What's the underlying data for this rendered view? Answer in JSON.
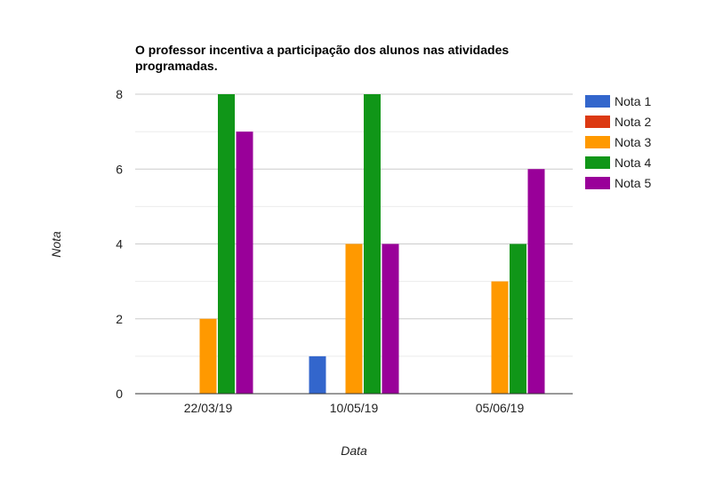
{
  "chart_data": {
    "type": "bar",
    "title": "O professor incentiva a participação dos alunos nas atividades programadas.",
    "xlabel": "Data",
    "ylabel": "Nota",
    "categories": [
      "22/03/19",
      "10/05/19",
      "05/06/19"
    ],
    "series": [
      {
        "name": "Nota 1",
        "color": "#3366cc",
        "values": [
          0,
          1,
          0
        ]
      },
      {
        "name": "Nota 2",
        "color": "#dc3912",
        "values": [
          0,
          0,
          0
        ]
      },
      {
        "name": "Nota 3",
        "color": "#ff9900",
        "values": [
          2,
          4,
          3
        ]
      },
      {
        "name": "Nota 4",
        "color": "#109618",
        "values": [
          8,
          8,
          4
        ]
      },
      {
        "name": "Nota 5",
        "color": "#990099",
        "values": [
          7,
          4,
          6
        ]
      }
    ],
    "ylim": [
      0,
      8
    ],
    "yticks": [
      0,
      2,
      4,
      6,
      8
    ],
    "grid": true,
    "legend_position": "right"
  }
}
